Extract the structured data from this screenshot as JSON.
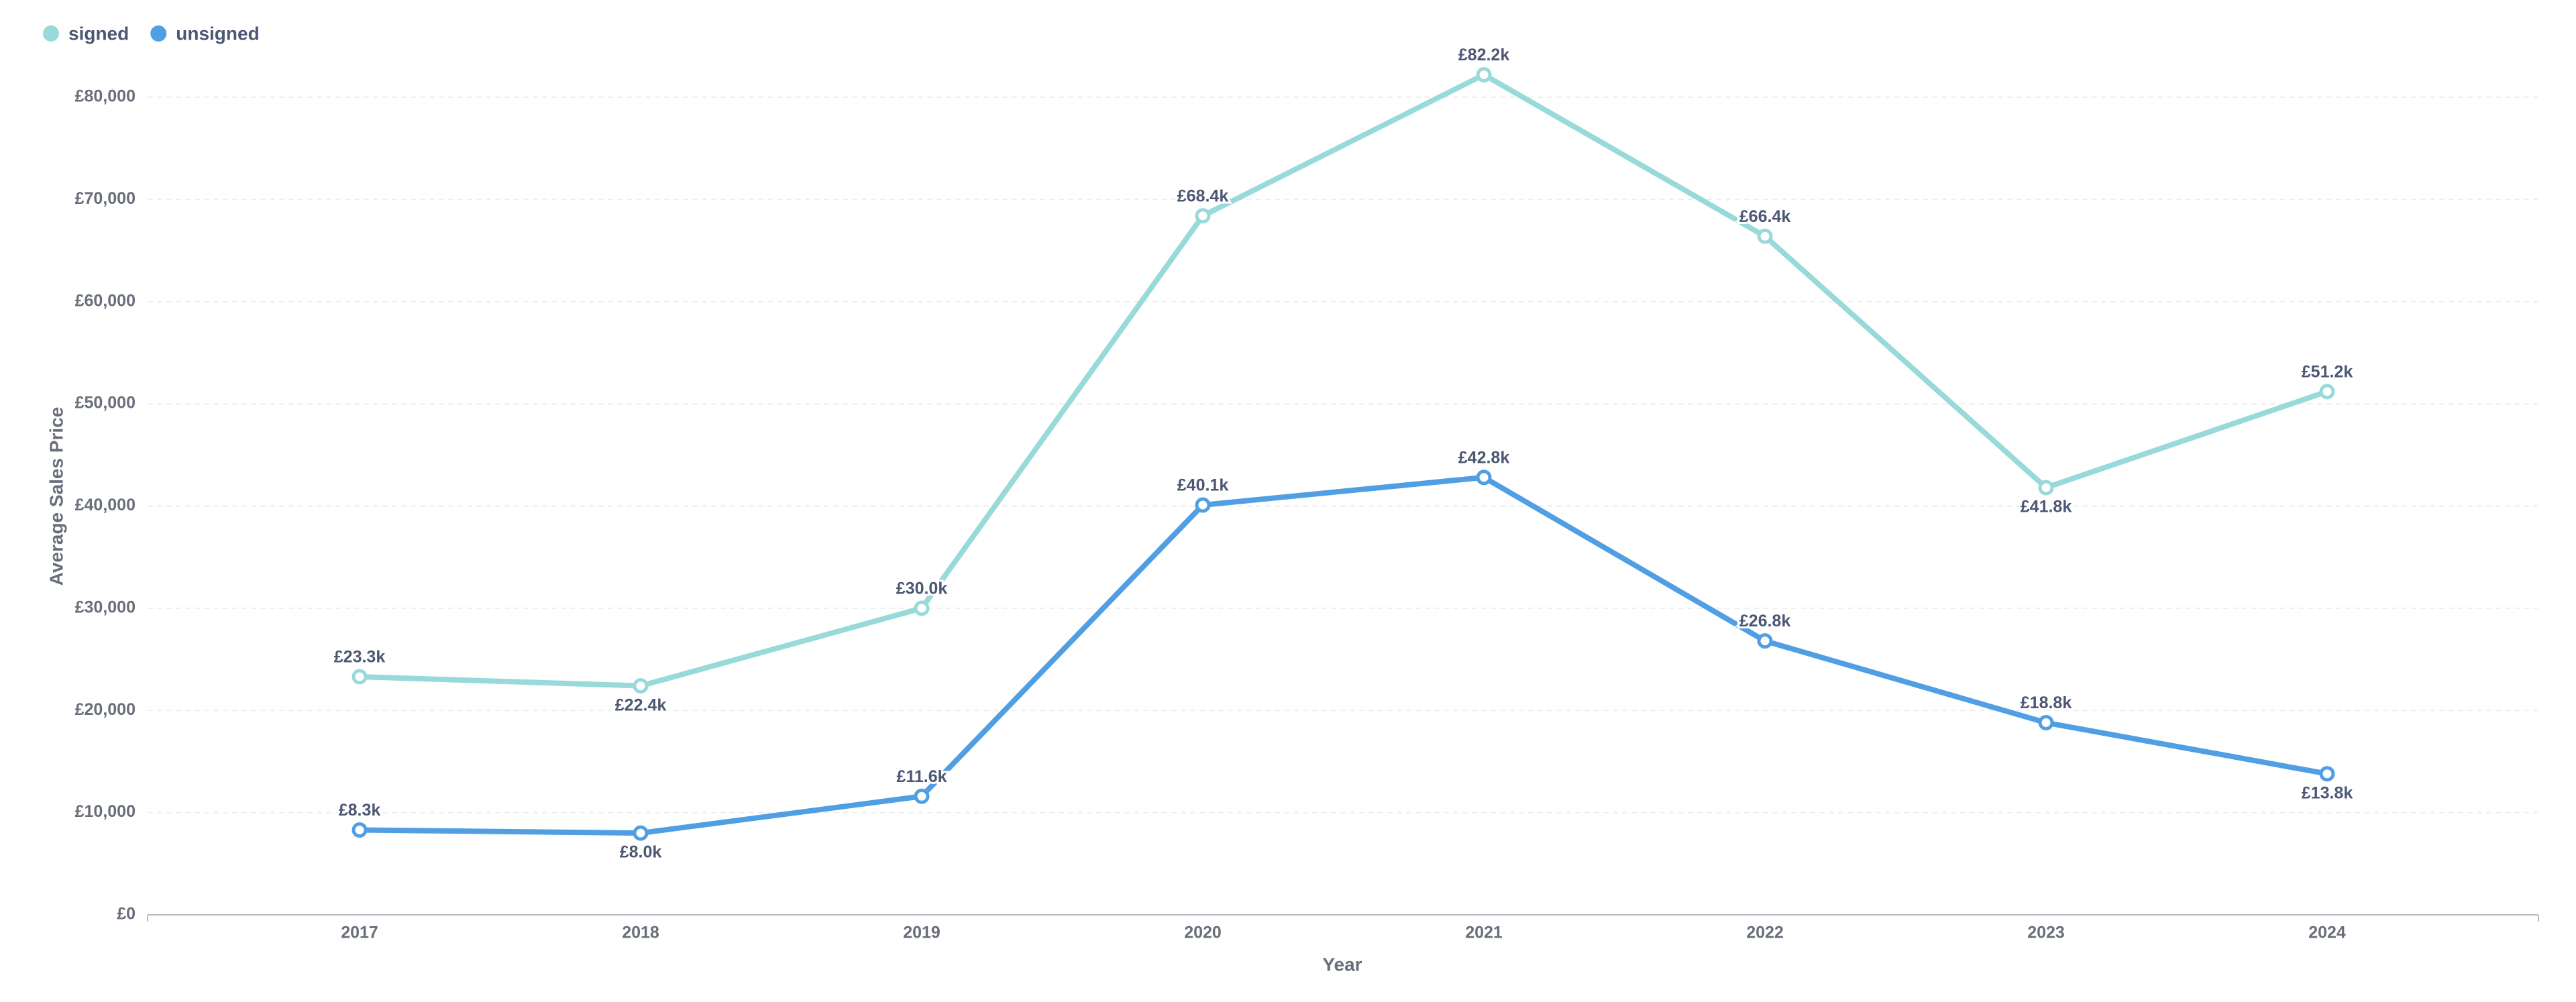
{
  "chart_data": {
    "type": "line",
    "x_label": "Year",
    "y_label": "Average Sales Price",
    "categories": [
      "2017",
      "2018",
      "2019",
      "2020",
      "2021",
      "2022",
      "2023",
      "2024"
    ],
    "series": [
      {
        "name": "signed",
        "color": "#98d9d9",
        "values": [
          23300,
          22400,
          30000,
          68400,
          82200,
          66400,
          41800,
          51200
        ],
        "value_labels": [
          "£23.3k",
          "£22.4k",
          "£30.0k",
          "£68.4k",
          "£82.2k",
          "£66.4k",
          "£41.8k",
          "£51.2k"
        ]
      },
      {
        "name": "unsigned",
        "color": "#509ee3",
        "values": [
          8300,
          8000,
          11600,
          40100,
          42800,
          26800,
          18800,
          13800
        ],
        "value_labels": [
          "£8.3k",
          "£8.0k",
          "£11.6k",
          "£40.1k",
          "£42.8k",
          "£26.8k",
          "£18.8k",
          "£13.8k"
        ]
      }
    ],
    "ylim": [
      0,
      80000
    ],
    "yticks": [
      {
        "value": 0,
        "label": "£0"
      },
      {
        "value": 10000,
        "label": "£10,000"
      },
      {
        "value": 20000,
        "label": "£20,000"
      },
      {
        "value": 30000,
        "label": "£30,000"
      },
      {
        "value": 40000,
        "label": "£40,000"
      },
      {
        "value": 50000,
        "label": "£50,000"
      },
      {
        "value": 60000,
        "label": "£60,000"
      },
      {
        "value": 70000,
        "label": "£70,000"
      },
      {
        "value": 80000,
        "label": "£80,000"
      }
    ],
    "grid": true,
    "legend": "top-left"
  }
}
